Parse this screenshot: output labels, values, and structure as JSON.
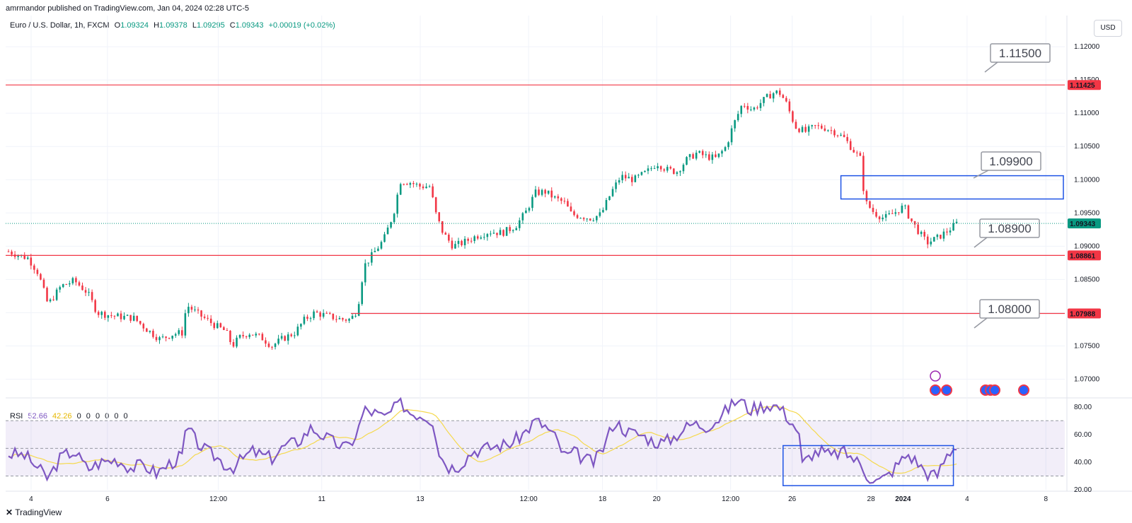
{
  "header": {
    "publisher": "amrmandor published on TradingView.com, Jan 04, 2024 02:28 UTC-5",
    "symbol": "Euro / U.S. Dollar, 1h, FXCM",
    "open_label": "O",
    "open": "1.09324",
    "high_label": "H",
    "high": "1.09378",
    "low_label": "L",
    "low": "1.09295",
    "close_label": "C",
    "close": "1.09343",
    "change": "+0.00019 (+0.02%)",
    "currency": "USD"
  },
  "footer": {
    "brand": "TradingView"
  },
  "colors": {
    "up": "#089981",
    "down": "#f23645",
    "rsi": "#7e57c2",
    "rsi_ma": "#f5d94e",
    "level": "#f23645",
    "box": "#1e53e5",
    "current": "#089981"
  },
  "chart_data": [
    {
      "type": "candlestick",
      "ylim": [
        1.0675,
        1.1215
      ],
      "y_ticks": [
        "1.07000",
        "1.07500",
        "1.08000",
        "1.08500",
        "1.09000",
        "1.09500",
        "1.10000",
        "1.10500",
        "1.11000",
        "1.11500",
        "1.12000"
      ],
      "x_ticks": [
        "4",
        "6",
        "12:00",
        "11",
        "13",
        "12:00",
        "18",
        "20",
        "12:00",
        "26",
        "28",
        "2024",
        "4",
        "8"
      ],
      "path_points": [
        [
          0,
          1.0892
        ],
        [
          4,
          1.0885
        ],
        [
          6,
          1.0882
        ],
        [
          9,
          1.086
        ],
        [
          12,
          1.0812
        ],
        [
          16,
          1.084
        ],
        [
          20,
          1.0848
        ],
        [
          24,
          1.083
        ],
        [
          27,
          1.08
        ],
        [
          32,
          1.0795
        ],
        [
          38,
          1.0792
        ],
        [
          42,
          1.0775
        ],
        [
          46,
          1.076
        ],
        [
          50,
          1.0768
        ],
        [
          53,
          1.077
        ],
        [
          54,
          1.0812
        ],
        [
          57,
          1.08
        ],
        [
          60,
          1.079
        ],
        [
          63,
          1.078
        ],
        [
          66,
          1.0772
        ],
        [
          68,
          1.075
        ],
        [
          70,
          1.0762
        ],
        [
          73,
          1.077
        ],
        [
          77,
          1.0762
        ],
        [
          80,
          1.075
        ],
        [
          83,
          1.076
        ],
        [
          87,
          1.077
        ],
        [
          90,
          1.079
        ],
        [
          93,
          1.08
        ],
        [
          97,
          1.0795
        ],
        [
          101,
          1.079
        ],
        [
          104,
          1.079
        ],
        [
          106,
          1.0805
        ],
        [
          108,
          1.087
        ],
        [
          111,
          1.089
        ],
        [
          114,
          1.091
        ],
        [
          117,
          1.095
        ],
        [
          119,
          1.0998
        ],
        [
          122,
          1.0996
        ],
        [
          125,
          1.099
        ],
        [
          128,
          1.099
        ],
        [
          130,
          1.0945
        ],
        [
          132,
          1.092
        ],
        [
          135,
          1.09
        ],
        [
          138,
          1.0905
        ],
        [
          142,
          1.0915
        ],
        [
          146,
          1.0922
        ],
        [
          150,
          1.092
        ],
        [
          154,
          1.093
        ],
        [
          157,
          1.095
        ],
        [
          160,
          1.098
        ],
        [
          163,
          1.0982
        ],
        [
          166,
          1.0972
        ],
        [
          169,
          1.0965
        ],
        [
          171,
          1.0948
        ],
        [
          174,
          1.0945
        ],
        [
          177,
          1.0942
        ],
        [
          180,
          1.0948
        ],
        [
          183,
          1.098
        ],
        [
          186,
          1.1005
        ],
        [
          190,
          1.1
        ],
        [
          194,
          1.1012
        ],
        [
          197,
          1.1025
        ],
        [
          200,
          1.1015
        ],
        [
          203,
          1.1012
        ],
        [
          206,
          1.103
        ],
        [
          209,
          1.104
        ],
        [
          212,
          1.1035
        ],
        [
          215,
          1.1032
        ],
        [
          218,
          1.105
        ],
        [
          220,
          1.108
        ],
        [
          223,
          1.1115
        ],
        [
          226,
          1.1105
        ],
        [
          229,
          1.1118
        ],
        [
          232,
          1.113
        ],
        [
          234,
          1.1132
        ],
        [
          236,
          1.1118
        ],
        [
          239,
          1.108
        ],
        [
          242,
          1.1072
        ],
        [
          245,
          1.108
        ],
        [
          248,
          1.1078
        ],
        [
          251,
          1.1072
        ],
        [
          254,
          1.1062
        ],
        [
          257,
          1.1042
        ],
        [
          259,
          1.103
        ],
        [
          260,
          1.0968
        ],
        [
          263,
          1.095
        ],
        [
          266,
          1.0942
        ],
        [
          269,
          1.095
        ],
        [
          272,
          1.096
        ],
        [
          274,
          1.094
        ],
        [
          277,
          1.0918
        ],
        [
          279,
          1.0905
        ],
        [
          282,
          1.0912
        ],
        [
          285,
          1.0922
        ],
        [
          288,
          1.0934
        ]
      ],
      "x_count": 320
    },
    {
      "type": "line",
      "title": "RSI",
      "values_label": [
        "52.66",
        "42.26"
      ],
      "extra_label": [
        "0",
        "0",
        "0",
        "0",
        "0",
        "0"
      ],
      "ylim": [
        20,
        85
      ],
      "y_ticks": [
        "20.00",
        "40.00",
        "60.00",
        "80.00"
      ],
      "bands": [
        30,
        50,
        70
      ],
      "path_points": [
        [
          0,
          46
        ],
        [
          5,
          45
        ],
        [
          8,
          38
        ],
        [
          12,
          28
        ],
        [
          16,
          44
        ],
        [
          20,
          48
        ],
        [
          24,
          35
        ],
        [
          28,
          40
        ],
        [
          33,
          42
        ],
        [
          37,
          36
        ],
        [
          41,
          38
        ],
        [
          45,
          32
        ],
        [
          49,
          39
        ],
        [
          53,
          45
        ],
        [
          54,
          66
        ],
        [
          57,
          55
        ],
        [
          60,
          48
        ],
        [
          63,
          44
        ],
        [
          66,
          38
        ],
        [
          68,
          36
        ],
        [
          71,
          42
        ],
        [
          74,
          48
        ],
        [
          77,
          45
        ],
        [
          80,
          43
        ],
        [
          84,
          52
        ],
        [
          88,
          55
        ],
        [
          92,
          65
        ],
        [
          95,
          60
        ],
        [
          99,
          54
        ],
        [
          103,
          50
        ],
        [
          106,
          62
        ],
        [
          108,
          78
        ],
        [
          111,
          76
        ],
        [
          114,
          72
        ],
        [
          117,
          78
        ],
        [
          119,
          84
        ],
        [
          122,
          76
        ],
        [
          126,
          74
        ],
        [
          129,
          70
        ],
        [
          131,
          45
        ],
        [
          134,
          36
        ],
        [
          137,
          38
        ],
        [
          141,
          48
        ],
        [
          145,
          50
        ],
        [
          149,
          52
        ],
        [
          153,
          54
        ],
        [
          157,
          62
        ],
        [
          160,
          70
        ],
        [
          163,
          66
        ],
        [
          166,
          58
        ],
        [
          169,
          44
        ],
        [
          172,
          47
        ],
        [
          175,
          42
        ],
        [
          178,
          40
        ],
        [
          181,
          52
        ],
        [
          184,
          70
        ],
        [
          188,
          62
        ],
        [
          192,
          60
        ],
        [
          196,
          55
        ],
        [
          199,
          54
        ],
        [
          202,
          58
        ],
        [
          205,
          64
        ],
        [
          208,
          68
        ],
        [
          212,
          66
        ],
        [
          216,
          72
        ],
        [
          219,
          80
        ],
        [
          222,
          86
        ],
        [
          225,
          78
        ],
        [
          228,
          80
        ],
        [
          231,
          82
        ],
        [
          234,
          80
        ],
        [
          237,
          72
        ],
        [
          240,
          62
        ],
        [
          241,
          38
        ],
        [
          244,
          46
        ],
        [
          247,
          48
        ],
        [
          250,
          44
        ],
        [
          253,
          48
        ],
        [
          256,
          44
        ],
        [
          259,
          38
        ],
        [
          261,
          30
        ],
        [
          264,
          26
        ],
        [
          267,
          30
        ],
        [
          270,
          38
        ],
        [
          273,
          46
        ],
        [
          276,
          40
        ],
        [
          279,
          32
        ],
        [
          282,
          30
        ],
        [
          285,
          45
        ],
        [
          288,
          53
        ]
      ]
    }
  ],
  "annotations": {
    "levels": [
      {
        "price": 1.11425,
        "label": "1.11425",
        "callout": "1.11500"
      },
      {
        "price": 1.08861,
        "label": "1.08861",
        "callout": "1.08900"
      },
      {
        "price": 1.07988,
        "label": "1.07988",
        "callout": "1.08000"
      }
    ],
    "current_price": "1.09343",
    "zone_callout": "1.09900",
    "zone": {
      "top": 1.1006,
      "bottom": 1.0971,
      "from_index": 259,
      "to_index": 318
    },
    "rsi_box": {
      "top": 52,
      "bottom": 23,
      "from_index": 241,
      "to_index": 294
    }
  }
}
